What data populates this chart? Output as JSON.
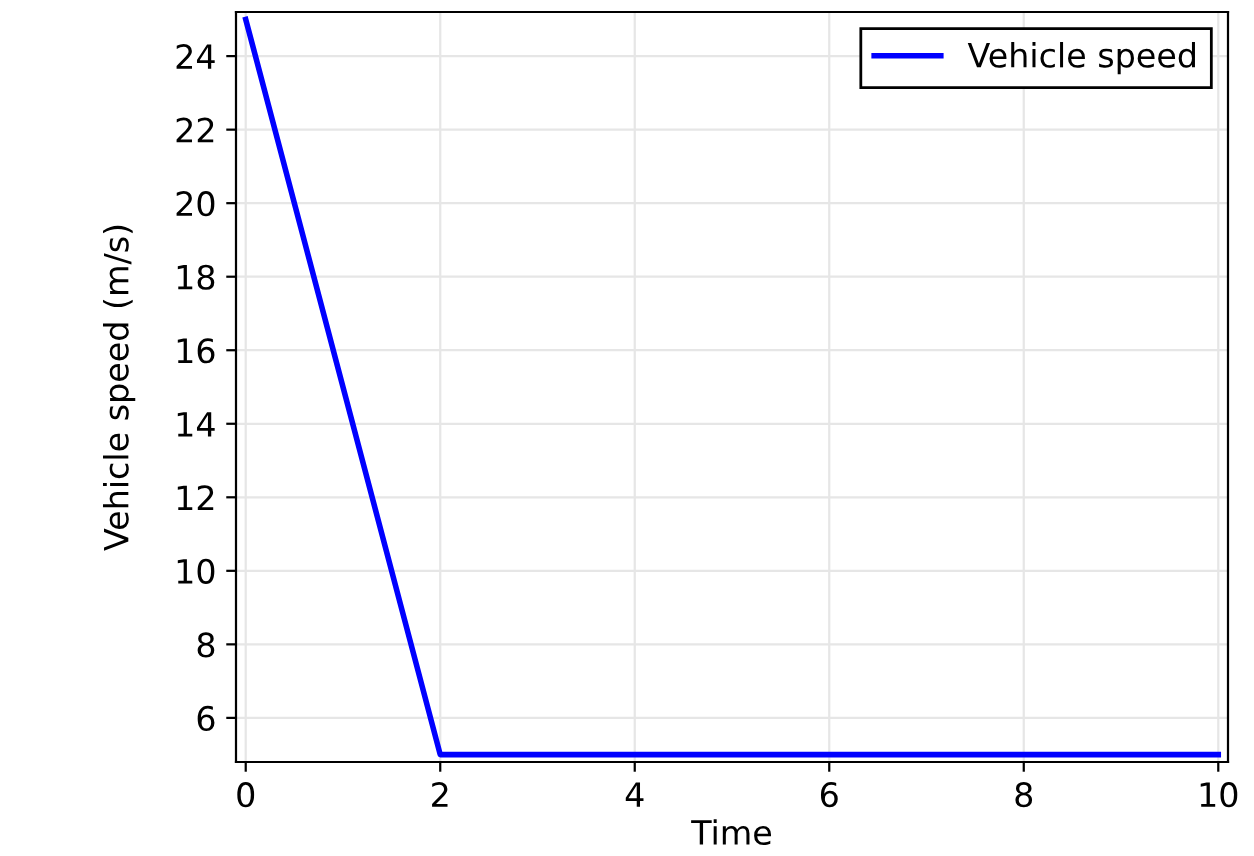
{
  "chart_data": {
    "type": "line",
    "xlabel": "Time",
    "ylabel": "Vehicle speed (m/s)",
    "x": [
      0,
      2,
      10
    ],
    "series": [
      {
        "name": "Vehicle speed",
        "color": "#0000ff",
        "values": [
          25,
          5,
          5
        ]
      }
    ],
    "xlim": [
      -0.1,
      10.1
    ],
    "ylim": [
      4.8,
      25.2
    ],
    "xticks": [
      0,
      2,
      4,
      6,
      8,
      10
    ],
    "yticks": [
      6,
      8,
      10,
      12,
      14,
      16,
      18,
      20,
      22,
      24
    ],
    "grid": true,
    "legend": "top right",
    "line_style": "solid",
    "marker": "none"
  }
}
